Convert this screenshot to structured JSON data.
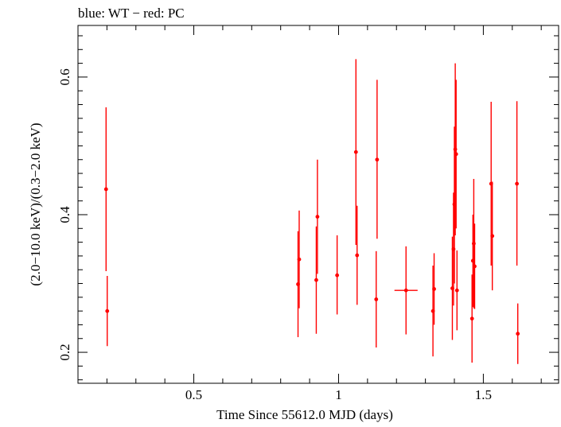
{
  "chart_data": {
    "type": "scatter",
    "title": "blue: WT − red: PC",
    "xlabel": "Time Since 55612.0 MJD (days)",
    "ylabel": "(2.0−10.0 keV)/(0.3−2.0 keV)",
    "xlim": [
      0.1,
      1.76
    ],
    "ylim": [
      0.155,
      0.675
    ],
    "x_ticks": [
      0.5,
      1,
      1.5
    ],
    "x_tick_labels": [
      "0.5",
      "1",
      "1.5"
    ],
    "y_ticks": [
      0.2,
      0.4,
      0.6
    ],
    "y_tick_labels": [
      "0.2",
      "0.4",
      "0.6"
    ],
    "grid": false,
    "series": [
      {
        "name": "PC",
        "color": "#ff0000",
        "points": [
          {
            "x": 0.197,
            "xerr": 0,
            "y": 0.437,
            "ylo": 0.318,
            "yhi": 0.556
          },
          {
            "x": 0.201,
            "xerr": 0,
            "y": 0.26,
            "ylo": 0.209,
            "yhi": 0.311
          },
          {
            "x": 0.86,
            "xerr": 0,
            "y": 0.299,
            "ylo": 0.222,
            "yhi": 0.376
          },
          {
            "x": 0.864,
            "xerr": 0,
            "y": 0.335,
            "ylo": 0.264,
            "yhi": 0.406
          },
          {
            "x": 0.923,
            "xerr": 0,
            "y": 0.305,
            "ylo": 0.227,
            "yhi": 0.383
          },
          {
            "x": 0.927,
            "xerr": 0,
            "y": 0.397,
            "ylo": 0.314,
            "yhi": 0.48
          },
          {
            "x": 0.995,
            "xerr": 0,
            "y": 0.312,
            "ylo": 0.255,
            "yhi": 0.37
          },
          {
            "x": 1.06,
            "xerr": 0,
            "y": 0.491,
            "ylo": 0.356,
            "yhi": 0.626
          },
          {
            "x": 1.064,
            "xerr": 0,
            "y": 0.341,
            "ylo": 0.269,
            "yhi": 0.413
          },
          {
            "x": 1.13,
            "xerr": 0,
            "y": 0.277,
            "ylo": 0.207,
            "yhi": 0.347
          },
          {
            "x": 1.133,
            "xerr": 0,
            "y": 0.48,
            "ylo": 0.365,
            "yhi": 0.596
          },
          {
            "x": 1.233,
            "xerr": 0.04,
            "y": 0.29,
            "ylo": 0.226,
            "yhi": 0.354
          },
          {
            "x": 1.326,
            "xerr": 0,
            "y": 0.26,
            "ylo": 0.194,
            "yhi": 0.326
          },
          {
            "x": 1.33,
            "xerr": 0,
            "y": 0.292,
            "ylo": 0.24,
            "yhi": 0.344
          },
          {
            "x": 1.393,
            "xerr": 0,
            "y": 0.293,
            "ylo": 0.218,
            "yhi": 0.368
          },
          {
            "x": 1.397,
            "xerr": 0,
            "y": 0.35,
            "ylo": 0.268,
            "yhi": 0.432
          },
          {
            "x": 1.4,
            "xerr": 0,
            "y": 0.415,
            "ylo": 0.3,
            "yhi": 0.528
          },
          {
            "x": 1.403,
            "xerr": 0,
            "y": 0.495,
            "ylo": 0.37,
            "yhi": 0.62
          },
          {
            "x": 1.406,
            "xerr": 0,
            "y": 0.488,
            "ylo": 0.38,
            "yhi": 0.596
          },
          {
            "x": 1.409,
            "xerr": 0,
            "y": 0.29,
            "ylo": 0.232,
            "yhi": 0.348
          },
          {
            "x": 1.461,
            "xerr": 0,
            "y": 0.249,
            "ylo": 0.185,
            "yhi": 0.313
          },
          {
            "x": 1.464,
            "xerr": 0,
            "y": 0.333,
            "ylo": 0.266,
            "yhi": 0.4
          },
          {
            "x": 1.467,
            "xerr": 0,
            "y": 0.358,
            "ylo": 0.264,
            "yhi": 0.452
          },
          {
            "x": 1.47,
            "xerr": 0,
            "y": 0.325,
            "ylo": 0.263,
            "yhi": 0.387
          },
          {
            "x": 1.527,
            "xerr": 0,
            "y": 0.445,
            "ylo": 0.326,
            "yhi": 0.564
          },
          {
            "x": 1.531,
            "xerr": 0,
            "y": 0.369,
            "ylo": 0.29,
            "yhi": 0.448
          },
          {
            "x": 1.616,
            "xerr": 0,
            "y": 0.445,
            "ylo": 0.326,
            "yhi": 0.565
          },
          {
            "x": 1.619,
            "xerr": 0,
            "y": 0.227,
            "ylo": 0.183,
            "yhi": 0.271
          }
        ]
      }
    ]
  }
}
